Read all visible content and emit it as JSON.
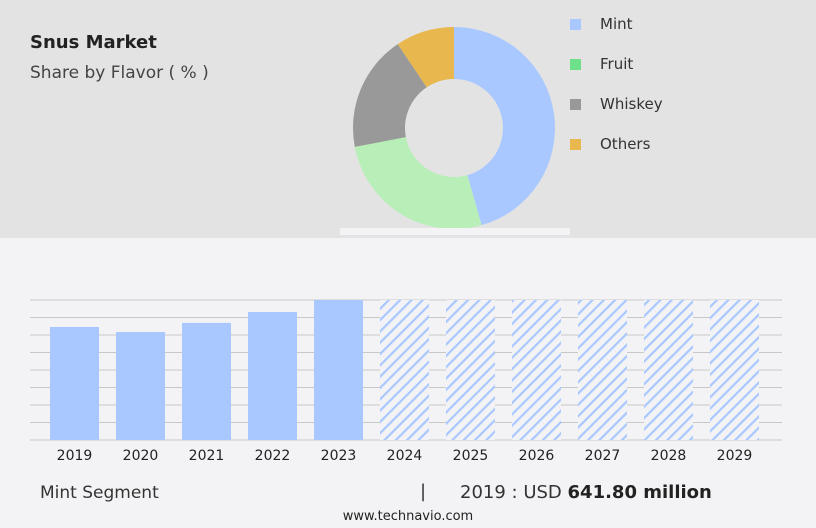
{
  "title": "Snus Market",
  "subtitle": "Share by Flavor ( % )",
  "legend": [
    {
      "label": "Mint",
      "color": "#a8c8ff"
    },
    {
      "label": "Fruit",
      "color": "#6ee08a"
    },
    {
      "label": "Whiskey",
      "color": "#999999"
    },
    {
      "label": "Others",
      "color": "#e8b84e"
    }
  ],
  "footer": {
    "segment": "Mint Segment",
    "separator": "|",
    "year_label": "2019 : USD",
    "value": "641.80 million",
    "site": "www.technavio.com"
  },
  "chart_data": [
    {
      "type": "pie",
      "donut": true,
      "title": "Share by Flavor ( % )",
      "labels": [
        "Mint",
        "Fruit",
        "Whiskey",
        "Others"
      ],
      "values": [
        45.6,
        26.4,
        18.6,
        9.4
      ],
      "colors": [
        "#a8c8ff",
        "#b8efb8",
        "#999999",
        "#e8b84e"
      ]
    },
    {
      "type": "bar",
      "series_label": "Mint Segment",
      "categories": [
        "2019",
        "2020",
        "2021",
        "2022",
        "2023",
        "2024",
        "2025",
        "2026",
        "2027",
        "2028",
        "2029"
      ],
      "values": [
        641.8,
        613,
        665,
        727,
        795,
        null,
        null,
        null,
        null,
        null,
        null
      ],
      "forecast_from": "2024",
      "ylim": [
        0,
        795
      ],
      "grid": true,
      "bar_color": "#a8c8ff"
    }
  ]
}
